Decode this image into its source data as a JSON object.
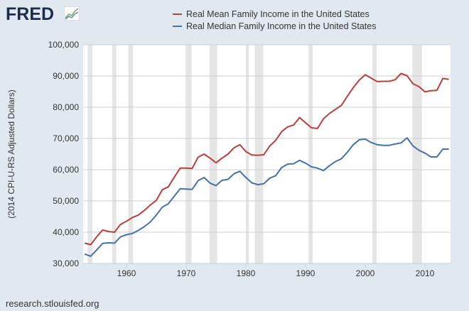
{
  "logo": "FRED",
  "footer": "research.stlouisfed.org",
  "chart_data": {
    "type": "line",
    "title": "",
    "xlabel": "",
    "ylabel": "(2014 CPI-U-RS Adjusted Dollars)",
    "xlim": [
      1953,
      2014
    ],
    "ylim": [
      30000,
      100000
    ],
    "grid": true,
    "legend_position": "top",
    "x_ticks": [
      "1960",
      "1970",
      "1980",
      "1990",
      "2000",
      "2010"
    ],
    "y_ticks": [
      "30,000",
      "40,000",
      "50,000",
      "60,000",
      "70,000",
      "80,000",
      "90,000",
      "100,000"
    ],
    "x_start": 1953,
    "recessions": [
      [
        1953.5,
        1954.3
      ],
      [
        1957.6,
        1958.3
      ],
      [
        1960.3,
        1961.1
      ],
      [
        1969.9,
        1970.9
      ],
      [
        1973.9,
        1975.2
      ],
      [
        1980.0,
        1980.5
      ],
      [
        1981.5,
        1982.9
      ],
      [
        1990.5,
        1991.2
      ],
      [
        2001.2,
        2001.9
      ],
      [
        2007.9,
        2009.5
      ]
    ],
    "series": [
      {
        "name": "Real Mean Family Income in the United States",
        "color": "#b5413e",
        "values": [
          36500,
          36000,
          38500,
          40700,
          40200,
          40000,
          42500,
          43500,
          44700,
          45500,
          47000,
          48700,
          50200,
          53600,
          54500,
          57600,
          60500,
          60500,
          60400,
          64000,
          65000,
          63700,
          62200,
          63700,
          65000,
          67000,
          68000,
          65800,
          64700,
          64600,
          64800,
          67600,
          69400,
          72200,
          73700,
          74300,
          76700,
          75000,
          73400,
          73200,
          76300,
          78000,
          79300,
          80600,
          83500,
          86300,
          88700,
          90400,
          89300,
          88200,
          88300,
          88300,
          88800,
          90800,
          90100,
          87500,
          86600,
          84900,
          85300,
          85400,
          89200,
          88900
        ]
      },
      {
        "name": "Real Median Family Income in the United States",
        "color": "#4572a7",
        "values": [
          33000,
          32300,
          34300,
          36400,
          36600,
          36500,
          38500,
          39200,
          39600,
          40600,
          41800,
          43300,
          45500,
          48000,
          49100,
          51500,
          53900,
          53800,
          53700,
          56500,
          57500,
          55700,
          54900,
          56600,
          56900,
          58700,
          59500,
          57500,
          55800,
          55200,
          55500,
          57300,
          58100,
          60700,
          61800,
          61900,
          63000,
          62100,
          60900,
          60500,
          59700,
          61300,
          62600,
          63500,
          65600,
          68000,
          69600,
          69800,
          68700,
          68000,
          67800,
          67800,
          68200,
          68600,
          70200,
          67600,
          66200,
          65300,
          64100,
          64100,
          66600,
          66600
        ]
      }
    ]
  }
}
